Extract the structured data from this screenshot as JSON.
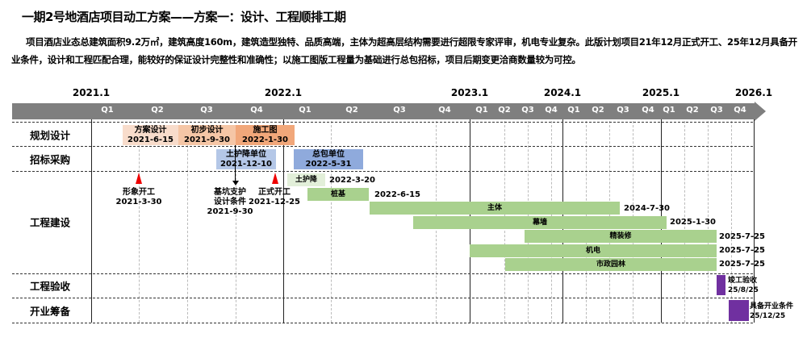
{
  "title": "一期2号地酒店项目动工方案——方案一：设计、工程顺排工期",
  "description": "项目酒店业态总建筑面积9.2万㎡，建筑高度160m，建筑造型独特、品质高端，主体为超高层结构需要进行超限专家评审，机电专业复杂。此版计划项目21年12月正式开工、25年12月具备开业条件，设计和工程匹配合理，能较好的保证设计完整性和准确性；以施工图版工程量为基础进行总包招标，项目后期变更洽商数量较为可控。",
  "timeline": {
    "years": [
      "2021.1",
      "2022.1",
      "2023.1",
      "2024.1",
      "2025.1",
      "2026.1"
    ],
    "quarters": [
      "Q1",
      "Q2",
      "Q3",
      "Q4",
      "Q1",
      "Q2",
      "Q3",
      "Q4",
      "Q1",
      "Q2",
      "Q3",
      "Q4",
      "Q1",
      "Q2",
      "Q3",
      "Q4",
      "Q1",
      "Q2",
      "Q3",
      "Q4"
    ]
  },
  "rows": [
    "规划设计",
    "招标采购",
    "工程建设",
    "工程验收",
    "开业筹备"
  ],
  "design": [
    {
      "name": "方案设计",
      "date": "2021-6-15",
      "color": "#f8dccb"
    },
    {
      "name": "初步设计",
      "date": "2021-9-30",
      "color": "#f5c6a6"
    },
    {
      "name": "施工图",
      "date": "2022-1-30",
      "color": "#f1a77a"
    }
  ],
  "procurement": [
    {
      "name": "土护降单位",
      "date": "2021-12-10",
      "color": "#b4c7e7"
    },
    {
      "name": "总包单位",
      "date": "2022-5-31",
      "color": "#8faadc"
    }
  ],
  "construction": [
    {
      "name": "土护降",
      "date": "2022-3-20"
    },
    {
      "name": "桩基",
      "date": "2022-6-15"
    },
    {
      "name": "主体",
      "date": "2024-7-30"
    },
    {
      "name": "幕墙",
      "date": "2025-1-30"
    },
    {
      "name": "精装修",
      "date": "2025-7-25"
    },
    {
      "name": "机电",
      "date": "2025-7-25"
    },
    {
      "name": "市政园林",
      "date": "2025-7-25"
    }
  ],
  "milestones": [
    {
      "name": "形象开工",
      "date": "2021-3-30"
    },
    {
      "name1": "基坑支护",
      "name2": "设计条件",
      "date": "2021-9-30"
    },
    {
      "name": "正式开工",
      "date": "2021-12-25"
    }
  ],
  "acceptance": {
    "name": "竣工验收",
    "date": "25/8/25"
  },
  "opening": {
    "name": "具备开业条件",
    "date": "25/12/25"
  },
  "colors": {
    "header": "#7f7f7f",
    "green": "#a9d18e",
    "light_green": "#e2efd9",
    "purple": "#7030a0",
    "milestone": "#ee0000"
  }
}
